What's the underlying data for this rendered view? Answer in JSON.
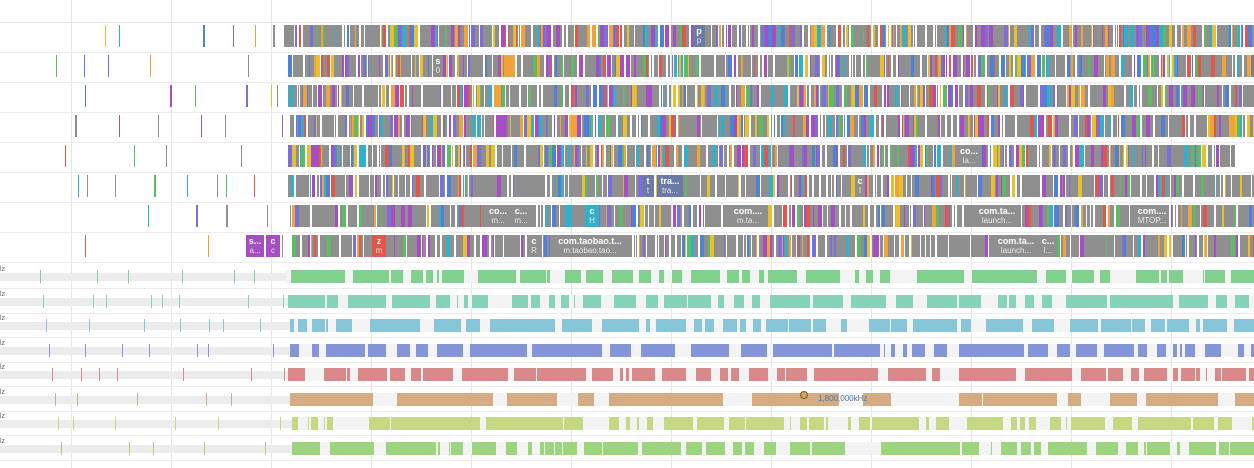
{
  "palette": {
    "gray": "#8f8f8f",
    "purple": "#a64ec4",
    "blue": "#4f82d6",
    "teal": "#32b0c9",
    "red": "#e2574c",
    "orange": "#f0a33a",
    "yellow": "#e8c02e",
    "green": "#5dbb63",
    "lilac": "#7b6fd8",
    "slate": "#6b7aa6"
  },
  "cpu_tracks": [
    {
      "labels": [
        {
          "t": "p",
          "s": "p",
          "color": "#6b7aa6"
        }
      ]
    },
    {
      "labels": [
        {
          "t": "s",
          "s": "0",
          "color": "#8f8f8f"
        }
      ]
    },
    {
      "labels": []
    },
    {
      "labels": []
    },
    {
      "labels": [
        {
          "t": "co...",
          "s": "la...",
          "color": "#8f8f8f"
        }
      ]
    },
    {
      "labels": [
        {
          "t": "t",
          "s": "t",
          "color": "#6b7aa6"
        },
        {
          "t": "tra...",
          "s": "tra...",
          "color": "#6b7aa6"
        },
        {
          "t": "c",
          "s": "l",
          "color": "#8f8f8f"
        }
      ]
    },
    {
      "labels": [
        {
          "t": "co...",
          "s": "m...",
          "color": "#8f8f8f"
        },
        {
          "t": "c...",
          "s": "m...",
          "color": "#8f8f8f"
        },
        {
          "t": "c",
          "s": "H",
          "color": "#32b0c9"
        },
        {
          "t": "com....",
          "s": "m.ta...",
          "color": "#8f8f8f"
        },
        {
          "t": "com.ta...",
          "s": "launch...",
          "color": "#8f8f8f"
        },
        {
          "t": "com....",
          "s": "MTOP...",
          "color": "#8f8f8f"
        }
      ]
    },
    {
      "labels": [
        {
          "t": "s...",
          "s": "a...",
          "color": "#a64ec4"
        },
        {
          "t": "c",
          "s": "c",
          "color": "#a64ec4"
        },
        {
          "t": "z",
          "s": "m",
          "color": "#e2574c"
        },
        {
          "t": "c",
          "s": "R",
          "color": "#8f8f8f"
        },
        {
          "t": "com.taobao.t...",
          "s": "m.taobao.tao...",
          "color": "#8f8f8f"
        },
        {
          "t": "com.ta...",
          "s": "launch...",
          "color": "#8f8f8f"
        },
        {
          "t": "c...",
          "s": "l...",
          "color": "#8f8f8f"
        }
      ]
    }
  ],
  "freq_tracks": [
    {
      "label": "lz",
      "color": "#7fd18d"
    },
    {
      "label": "lz",
      "color": "#86d4b8"
    },
    {
      "label": "lz",
      "color": "#86c6d8"
    },
    {
      "label": "lz",
      "color": "#8596d8"
    },
    {
      "label": "lz",
      "color": "#d88a8a"
    },
    {
      "label": "lz",
      "color": "#d4ab82"
    },
    {
      "label": "lz",
      "color": "#c6d884"
    },
    {
      "label": "lz",
      "color": "#9fd47f"
    }
  ],
  "tooltip": {
    "text": "1,800,000kHz"
  }
}
